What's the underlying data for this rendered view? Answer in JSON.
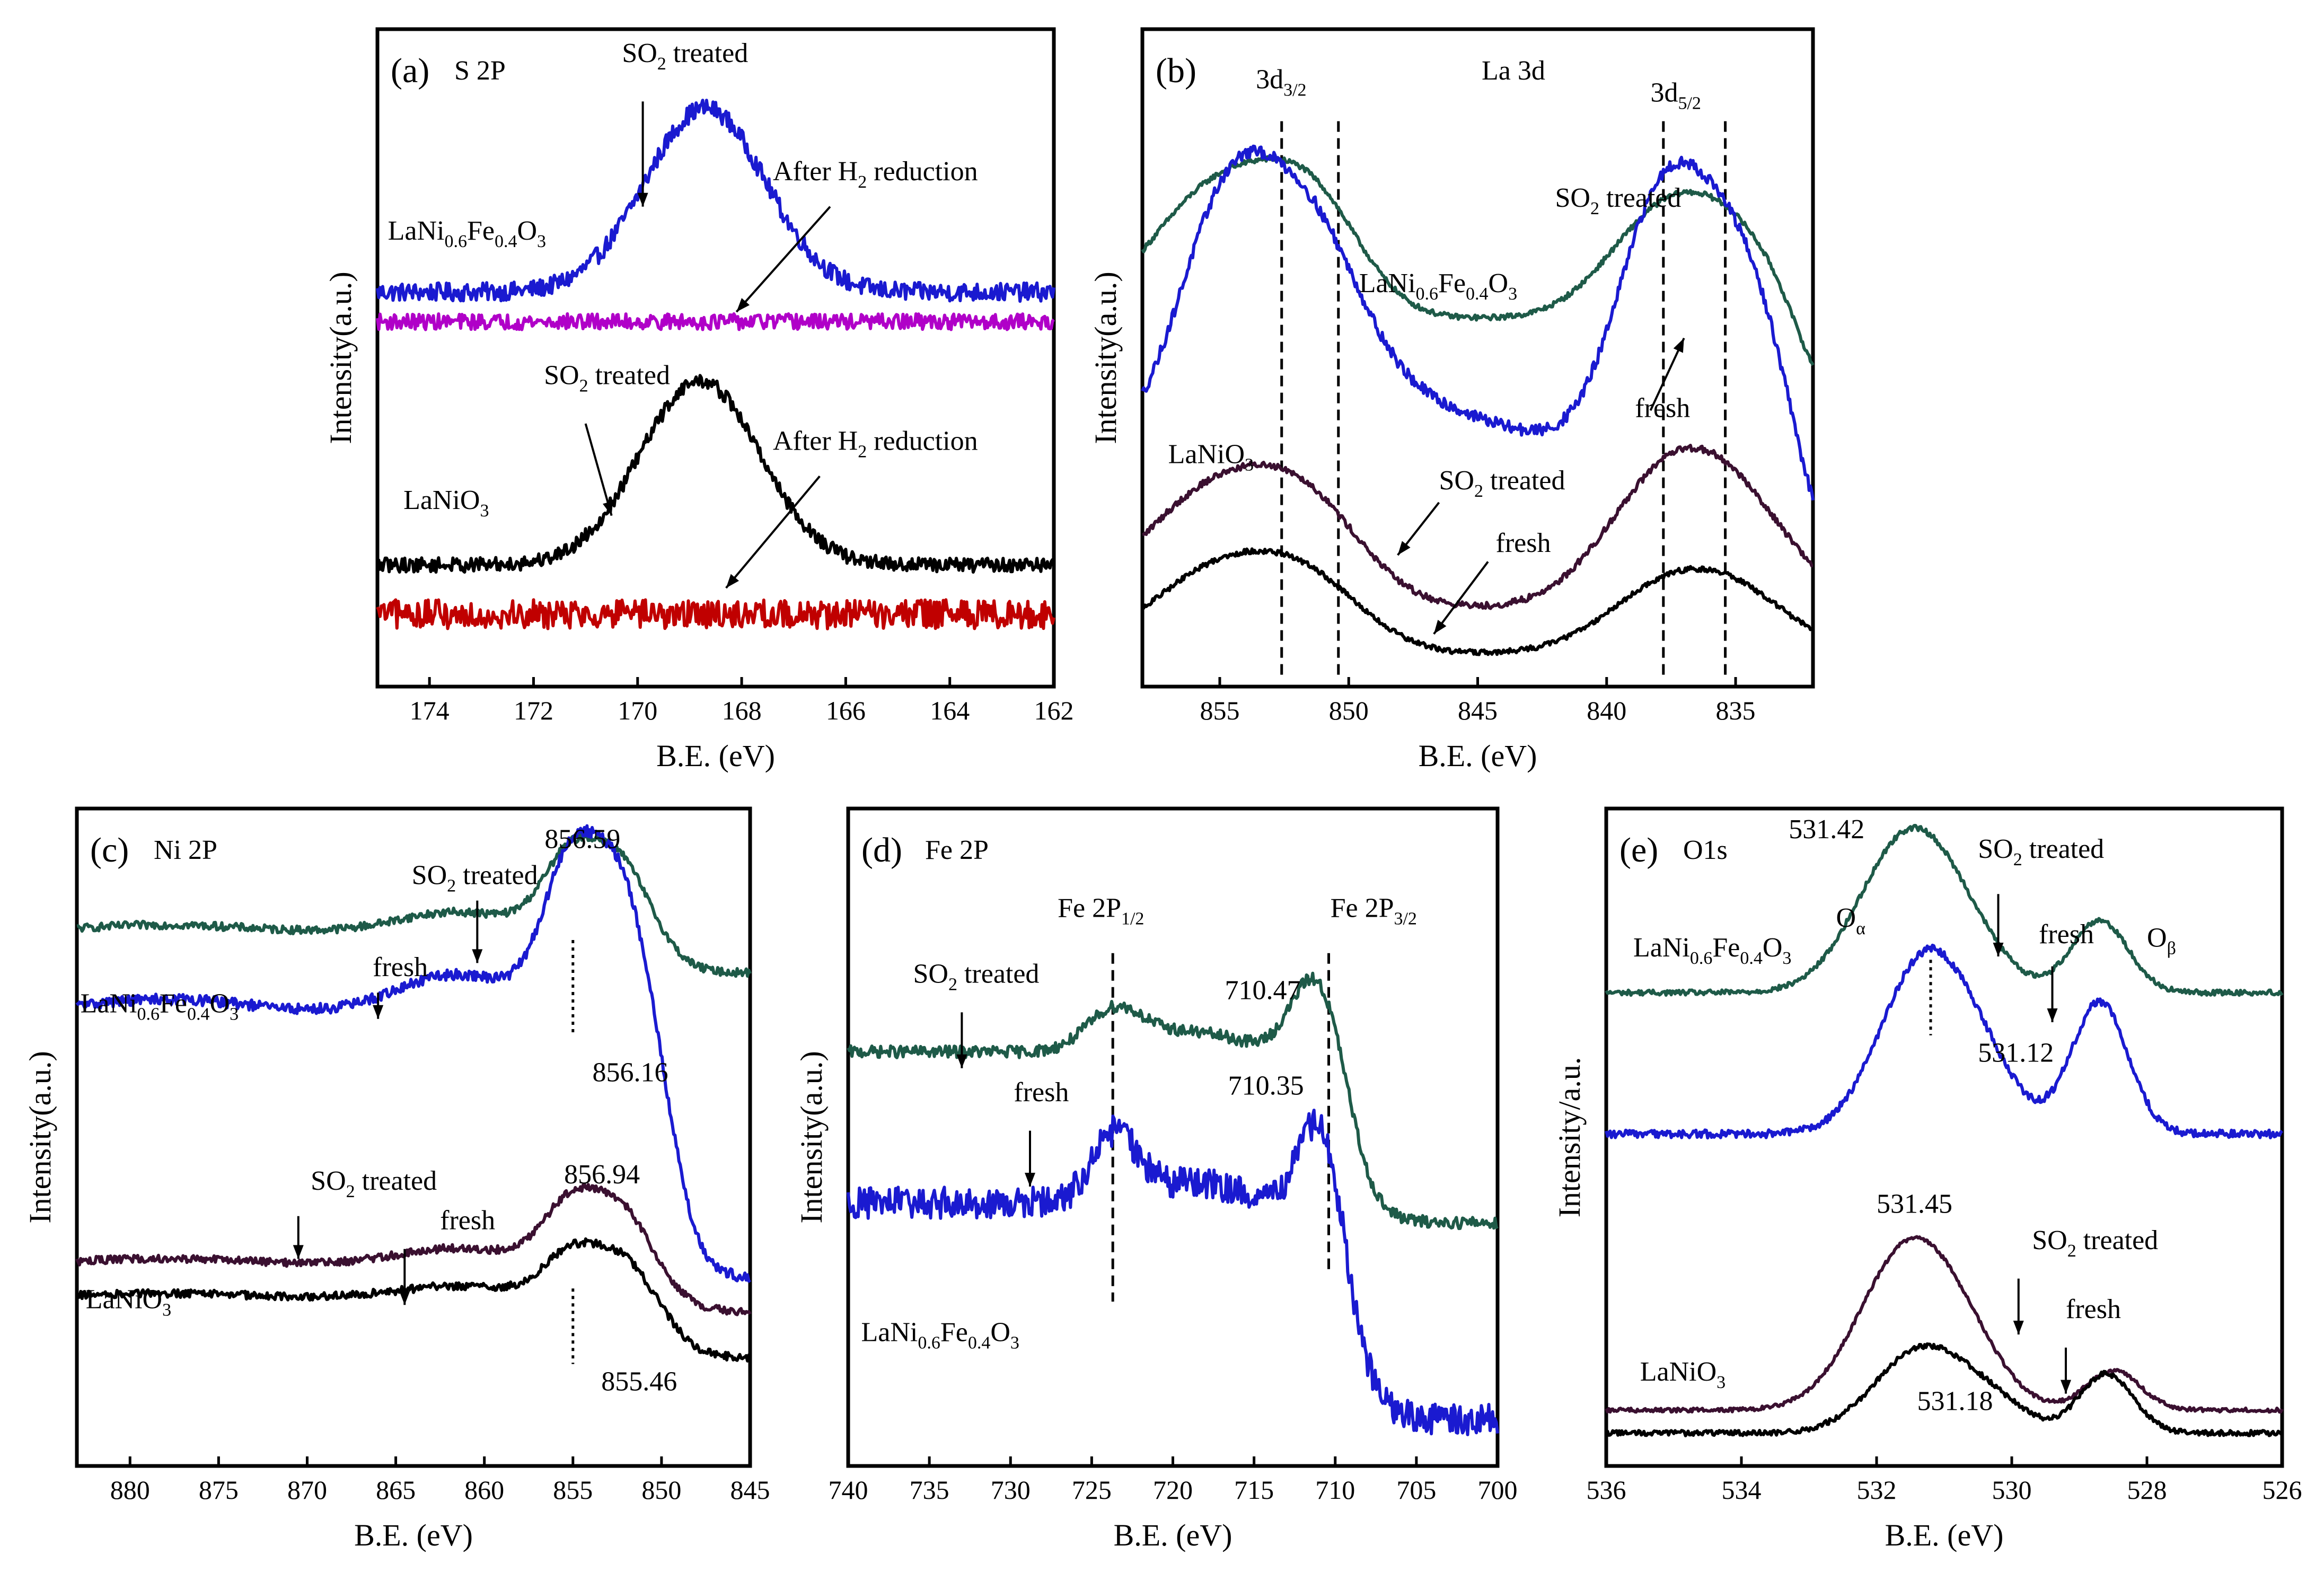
{
  "chart_data": [
    {
      "id": "a",
      "type": "line",
      "panel_label": "(a)",
      "title": "S 2P",
      "xlabel": "B.E. (eV)",
      "ylabel": "Intensity(a.u.)",
      "xlim": [
        175,
        162
      ],
      "xticks": [
        174,
        172,
        170,
        168,
        166,
        164,
        162
      ],
      "ylim": [
        0,
        1
      ],
      "series": [
        {
          "name": "LaNi0.6Fe0.4O3 SO2 treated",
          "color": "#1a1ad0",
          "kind": "gauss",
          "base": 0.6,
          "noise": 0.014,
          "peaks": [
            {
              "c": 168.7,
              "w": 1.15,
              "a": 0.28
            }
          ]
        },
        {
          "name": "LaNi0.6Fe0.4O3 After H2 reduction",
          "color": "#b000c8",
          "kind": "gauss",
          "base": 0.555,
          "noise": 0.012,
          "peaks": []
        },
        {
          "name": "LaNiO3 SO2 treated",
          "color": "#000000",
          "kind": "gauss",
          "base": 0.185,
          "noise": 0.011,
          "peaks": [
            {
              "c": 168.8,
              "w": 1.15,
              "a": 0.28
            }
          ]
        },
        {
          "name": "LaNiO3 After H2 reduction",
          "color": "#c00000",
          "kind": "gauss",
          "base": 0.11,
          "noise": 0.022,
          "peaks": []
        }
      ],
      "annotations": [
        {
          "text": "SO",
          "sub": "2",
          "tail": " treated",
          "tx": 170.3,
          "ty": 0.95,
          "from": [
            169.9,
            0.89
          ],
          "to": [
            169.9,
            0.73
          ]
        },
        {
          "text": "After H",
          "sub": "2",
          "tail": " reduction",
          "tx": 167.4,
          "ty": 0.77,
          "from": [
            166.3,
            0.73
          ],
          "to": [
            168.1,
            0.57
          ]
        },
        {
          "text": "SO",
          "sub": "2",
          "tail": " treated",
          "tx": 171.8,
          "ty": 0.46,
          "from": [
            171.0,
            0.4
          ],
          "to": [
            170.5,
            0.26
          ]
        },
        {
          "text": "After H",
          "sub": "2",
          "tail": " reduction",
          "tx": 167.4,
          "ty": 0.36,
          "from": [
            166.5,
            0.32
          ],
          "to": [
            168.3,
            0.15
          ]
        }
      ],
      "labels": [
        {
          "parts": [
            "LaNi",
            "0.6",
            "Fe",
            "0.4",
            "O",
            "3"
          ],
          "tx": 174.8,
          "ty": 0.68
        },
        {
          "parts": [
            "LaNiO",
            "3"
          ],
          "tx": 174.5,
          "ty": 0.27
        }
      ]
    },
    {
      "id": "b",
      "type": "line",
      "panel_label": "(b)",
      "title": "La 3d",
      "xlabel": "B.E. (eV)",
      "ylabel": "Intensity(a.u.)",
      "xlim": [
        858,
        832
      ],
      "xticks": [
        855,
        850,
        845,
        840,
        835
      ],
      "ylim": [
        0,
        1
      ],
      "series": [
        {
          "name": "LaNi0.6Fe0.4O3 SO2 treated",
          "color": "#1e5a48",
          "kind": "gauss",
          "base": 0.56,
          "noise": 0.004,
          "tail": [
            832.6,
            0.15
          ],
          "peaks": [
            {
              "c": 855.0,
              "w": 2.6,
              "a": 0.2
            },
            {
              "c": 851.3,
              "w": 1.9,
              "a": 0.14
            },
            {
              "c": 838.0,
              "w": 2.1,
              "a": 0.14
            },
            {
              "c": 835.0,
              "w": 2.0,
              "a": 0.11
            }
          ]
        },
        {
          "name": "LaNi0.6Fe0.4O3 fresh",
          "color": "#1a1ad0",
          "kind": "gauss",
          "base": 0.36,
          "noise": 0.009,
          "tail": [
            832.6,
            0.2
          ],
          "peaks": [
            {
              "c": 854.8,
              "w": 1.9,
              "a": 0.34
            },
            {
              "c": 851.5,
              "w": 2.0,
              "a": 0.27
            },
            {
              "c": 848.0,
              "w": 3.5,
              "a": 0.07
            },
            {
              "c": 838.0,
              "w": 1.7,
              "a": 0.34
            },
            {
              "c": 835.0,
              "w": 1.8,
              "a": 0.28
            }
          ]
        },
        {
          "name": "LaNiO3 SO2 treated",
          "color": "#3a1030",
          "kind": "gauss",
          "base": 0.12,
          "noise": 0.005,
          "peaks": [
            {
              "c": 855.3,
              "w": 2.8,
              "a": 0.17
            },
            {
              "c": 851.5,
              "w": 2.2,
              "a": 0.12
            },
            {
              "c": 838.0,
              "w": 2.3,
              "a": 0.16
            },
            {
              "c": 835.0,
              "w": 2.3,
              "a": 0.14
            }
          ]
        },
        {
          "name": "LaNiO3 fresh",
          "color": "#000000",
          "kind": "gauss",
          "base": 0.05,
          "noise": 0.004,
          "peaks": [
            {
              "c": 855.2,
              "w": 2.6,
              "a": 0.12
            },
            {
              "c": 851.5,
              "w": 2.2,
              "a": 0.09
            },
            {
              "c": 838.0,
              "w": 2.3,
              "a": 0.08
            },
            {
              "c": 835.0,
              "w": 2.3,
              "a": 0.08
            }
          ]
        }
      ],
      "vlines": [
        852.6,
        850.4,
        837.8,
        835.4
      ],
      "vline_top": 0.86,
      "annotations": [
        {
          "text": "SO",
          "sub": "2",
          "tail": " treated",
          "tx": 842.0,
          "ty": 0.73
        },
        {
          "text": "fresh",
          "tx": 838.9,
          "ty": 0.41,
          "from": [
            838.3,
            0.42
          ],
          "to": [
            837.0,
            0.53
          ]
        },
        {
          "text": "SO",
          "sub": "2",
          "tail": " treated",
          "tx": 846.5,
          "ty": 0.3,
          "from": [
            846.5,
            0.28
          ],
          "to": [
            848.1,
            0.2
          ]
        },
        {
          "text": "fresh",
          "tx": 844.3,
          "ty": 0.205,
          "from": [
            844.6,
            0.19
          ],
          "to": [
            846.7,
            0.08
          ]
        }
      ],
      "labels": [
        {
          "parts": [
            "3d",
            "3/2"
          ],
          "tx": 853.6,
          "ty": 0.91
        },
        {
          "parts": [
            "3d",
            "5/2"
          ],
          "tx": 838.3,
          "ty": 0.89
        },
        {
          "parts": [
            "LaNi",
            "0.6",
            "Fe",
            "0.4",
            "O",
            "3"
          ],
          "tx": 849.6,
          "ty": 0.6
        },
        {
          "parts": [
            "LaNiO",
            "3"
          ],
          "tx": 857.0,
          "ty": 0.34
        }
      ]
    },
    {
      "id": "c",
      "type": "line",
      "panel_label": "(c)",
      "title": "Ni 2P",
      "xlabel": "B.E. (eV)",
      "ylabel": "Intensity(a.u.)",
      "xlim": [
        883,
        845
      ],
      "xticks": [
        880,
        875,
        870,
        865,
        860,
        855,
        850,
        845
      ],
      "ylim": [
        0,
        1
      ],
      "series": [
        {
          "name": "LaNi0.6Fe0.4O3 SO2 treated",
          "color": "#1e5a48",
          "kind": "ni",
          "base": 0.81,
          "amp": 0.13,
          "noise": 0.006
        },
        {
          "name": "LaNi0.6Fe0.4O3 fresh",
          "color": "#1a1ad0",
          "kind": "ni",
          "base": 0.685,
          "amp": 0.25,
          "noise": 0.008,
          "drop": 0.4
        },
        {
          "name": "LaNiO3 SO2 treated",
          "color": "#3a1030",
          "kind": "ni",
          "base": 0.305,
          "amp": 0.105,
          "noise": 0.006,
          "drop": 0.07
        },
        {
          "name": "LaNiO3 fresh",
          "color": "#000000",
          "kind": "ni",
          "base": 0.255,
          "amp": 0.075,
          "noise": 0.006,
          "drop": 0.09
        }
      ],
      "dotted": [
        {
          "x": 855.0,
          "y0": 0.8,
          "y1": 0.655
        },
        {
          "x": 855.0,
          "y0": 0.27,
          "y1": 0.155
        }
      ],
      "annotations": [
        {
          "text": "856.59",
          "tx": 856.6,
          "ty": 0.94
        },
        {
          "text": "SO",
          "sub": "2",
          "tail": " treated",
          "tx": 864.1,
          "ty": 0.885,
          "from": [
            860.4,
            0.86
          ],
          "to": [
            860.4,
            0.765
          ]
        },
        {
          "text": "fresh",
          "tx": 866.3,
          "ty": 0.745,
          "from": [
            866.0,
            0.72
          ],
          "to": [
            866.0,
            0.68
          ]
        },
        {
          "text": "856.16",
          "tx": 853.9,
          "ty": 0.585
        },
        {
          "text": "SO",
          "sub": "2",
          "tail": " treated",
          "tx": 869.8,
          "ty": 0.42,
          "from": [
            870.5,
            0.38
          ],
          "to": [
            870.5,
            0.315
          ]
        },
        {
          "text": "fresh",
          "tx": 862.5,
          "ty": 0.36,
          "from": [
            864.5,
            0.33
          ],
          "to": [
            864.5,
            0.245
          ]
        },
        {
          "text": "856.94",
          "tx": 855.5,
          "ty": 0.43
        },
        {
          "text": "855.46",
          "tx": 853.4,
          "ty": 0.115
        }
      ],
      "labels": [
        {
          "parts": [
            "LaNi",
            "0.6",
            "Fe",
            "0.4",
            "O",
            "3"
          ],
          "tx": 882.8,
          "ty": 0.69
        },
        {
          "parts": [
            "LaNiO",
            "3"
          ],
          "tx": 882.5,
          "ty": 0.24
        }
      ]
    },
    {
      "id": "d",
      "type": "line",
      "panel_label": "(d)",
      "title": "Fe 2P",
      "xlabel": "B.E. (eV)",
      "ylabel": "Intensity(a.u.)",
      "xlim": [
        740,
        700
      ],
      "xticks": [
        740,
        735,
        730,
        725,
        720,
        715,
        710,
        705,
        700
      ],
      "ylim": [
        0,
        1
      ],
      "series": [
        {
          "name": "LaNi0.6Fe0.4O3 SO2 treated",
          "color": "#1e5a48",
          "kind": "fe",
          "base": 0.63,
          "drop": 0.26,
          "noise": 0.009,
          "peaks": [
            {
              "c": 723.6,
              "w": 1.7,
              "a": 0.06
            },
            {
              "c": 710.8,
              "w": 1.4,
              "a": 0.1
            },
            {
              "c": 712.0,
              "w": 1.3,
              "a": 0.04
            }
          ]
        },
        {
          "name": "LaNi0.6Fe0.4O3 fresh",
          "color": "#1a1ad0",
          "kind": "fe",
          "base": 0.4,
          "drop": 0.33,
          "noise": 0.024,
          "peaks": [
            {
              "c": 723.6,
              "w": 1.4,
              "a": 0.1
            },
            {
              "c": 710.6,
              "w": 1.1,
              "a": 0.12
            },
            {
              "c": 711.8,
              "w": 1.0,
              "a": 0.05
            }
          ]
        }
      ],
      "dashed": [
        {
          "x": 723.7,
          "y0": 0.78,
          "y1": 0.25
        },
        {
          "x": 710.4,
          "y0": 0.78,
          "y1": 0.29
        }
      ],
      "annotations": [
        {
          "text": "Fe 2P",
          "sub": "1/2",
          "tx": 727.1,
          "ty": 0.835
        },
        {
          "text": "Fe 2P",
          "sub": "3/2",
          "tx": 710.3,
          "ty": 0.835
        },
        {
          "text": "710.47",
          "tx": 716.8,
          "ty": 0.71
        },
        {
          "text": "SO",
          "sub": "2",
          "tail": " treated",
          "tx": 736.0,
          "ty": 0.735,
          "from": [
            733.0,
            0.69
          ],
          "to": [
            733.0,
            0.605
          ]
        },
        {
          "text": "fresh",
          "tx": 729.8,
          "ty": 0.555,
          "from": [
            728.8,
            0.51
          ],
          "to": [
            728.8,
            0.425
          ]
        },
        {
          "text": "710.35",
          "tx": 716.6,
          "ty": 0.565
        }
      ],
      "labels": [
        {
          "parts": [
            "LaNi",
            "0.6",
            "Fe",
            "0.4",
            "O",
            "3"
          ],
          "tx": 739.2,
          "ty": 0.19
        }
      ]
    },
    {
      "id": "e",
      "type": "line",
      "panel_label": "(e)",
      "title": "O1s",
      "xlabel": "B.E. (eV)",
      "ylabel": "Intensity/a.u.",
      "xlim": [
        536,
        526
      ],
      "xticks": [
        536,
        534,
        532,
        530,
        528,
        526
      ],
      "ylim": [
        0,
        1
      ],
      "series": [
        {
          "name": "LaNi0.6Fe0.4O3 SO2 treated",
          "color": "#1e5a48",
          "kind": "gauss",
          "base": 0.72,
          "noise": 0.004,
          "peaks": [
            {
              "c": 531.55,
              "w": 0.72,
              "a": 0.23
            },
            {
              "c": 530.7,
              "w": 0.6,
              "a": 0.05
            },
            {
              "c": 528.7,
              "w": 0.42,
              "a": 0.11
            }
          ]
        },
        {
          "name": "LaNi0.6Fe0.4O3 fresh",
          "color": "#1a1ad0",
          "kind": "gauss",
          "base": 0.505,
          "noise": 0.006,
          "peaks": [
            {
              "c": 531.3,
              "w": 0.65,
              "a": 0.26
            },
            {
              "c": 530.4,
              "w": 0.55,
              "a": 0.07
            },
            {
              "c": 528.7,
              "w": 0.42,
              "a": 0.2
            }
          ]
        },
        {
          "name": "LaNiO3 SO2 treated",
          "color": "#3a1030",
          "kind": "gauss",
          "base": 0.085,
          "noise": 0.003,
          "peaks": [
            {
              "c": 531.5,
              "w": 0.74,
              "a": 0.25
            },
            {
              "c": 530.6,
              "w": 0.55,
              "a": 0.04
            },
            {
              "c": 528.5,
              "w": 0.4,
              "a": 0.06
            }
          ]
        },
        {
          "name": "LaNiO3 fresh",
          "color": "#000000",
          "kind": "gauss",
          "base": 0.05,
          "noise": 0.004,
          "peaks": [
            {
              "c": 531.3,
              "w": 0.7,
              "a": 0.13
            },
            {
              "c": 530.2,
              "w": 0.5,
              "a": 0.03
            },
            {
              "c": 528.6,
              "w": 0.4,
              "a": 0.09
            }
          ]
        }
      ],
      "dotted": [
        {
          "x": 531.2,
          "y0": 0.77,
          "y1": 0.655
        }
      ],
      "annotations": [
        {
          "text": "531.42",
          "tx": 533.3,
          "ty": 0.955
        },
        {
          "text": "SO",
          "sub": "2",
          "tail": " treated",
          "tx": 530.5,
          "ty": 0.925,
          "from": [
            530.2,
            0.87
          ],
          "to": [
            530.2,
            0.775
          ]
        },
        {
          "text": "O",
          "sub": "α",
          "tx": 532.6,
          "ty": 0.82
        },
        {
          "text": "fresh",
          "tx": 529.6,
          "ty": 0.795,
          "from": [
            529.4,
            0.76
          ],
          "to": [
            529.4,
            0.675
          ]
        },
        {
          "text": "O",
          "sub": "β",
          "tx": 528.0,
          "ty": 0.79
        },
        {
          "text": "531.12",
          "tx": 530.5,
          "ty": 0.615
        },
        {
          "text": "531.45",
          "tx": 532.0,
          "ty": 0.385
        },
        {
          "text": "SO",
          "sub": "2",
          "tail": " treated",
          "tx": 529.7,
          "ty": 0.33,
          "from": [
            529.9,
            0.285
          ],
          "to": [
            529.9,
            0.2
          ]
        },
        {
          "text": "fresh",
          "tx": 529.2,
          "ty": 0.225,
          "from": [
            529.2,
            0.18
          ],
          "to": [
            529.2,
            0.11
          ]
        },
        {
          "text": "531.18",
          "tx": 531.4,
          "ty": 0.085
        }
      ],
      "labels": [
        {
          "parts": [
            "LaNi",
            "0.6",
            "Fe",
            "0.4",
            "O",
            "3"
          ],
          "tx": 535.6,
          "ty": 0.775
        },
        {
          "parts": [
            "LaNiO",
            "3"
          ],
          "tx": 535.5,
          "ty": 0.13
        }
      ]
    }
  ]
}
